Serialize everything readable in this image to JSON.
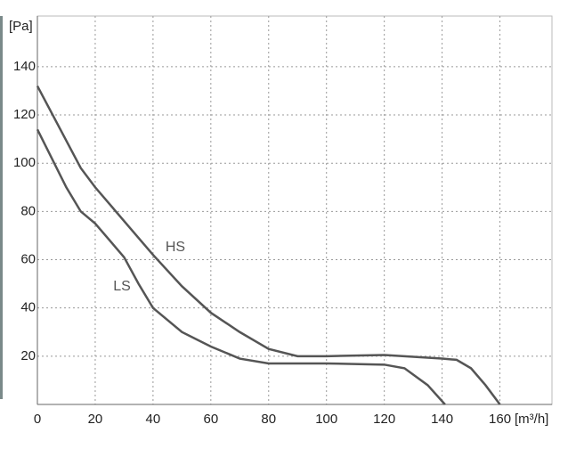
{
  "chart_data": {
    "type": "line",
    "x_label": "[m³/h]",
    "y_label": "[Pa]",
    "series": [
      {
        "name": "HS",
        "color": "#555555",
        "x": [
          0,
          15,
          20,
          40,
          50,
          60,
          70,
          80,
          90,
          100,
          120,
          140,
          145,
          150,
          155,
          160
        ],
        "values": [
          132,
          98,
          90,
          62,
          49,
          38,
          30,
          23,
          20,
          20,
          20.5,
          19,
          18.5,
          15,
          8,
          0
        ]
      },
      {
        "name": "LS",
        "color": "#555555",
        "x": [
          0,
          10,
          15,
          20,
          30,
          35,
          40,
          50,
          60,
          70,
          80,
          100,
          120,
          127,
          135,
          141
        ],
        "values": [
          114,
          90,
          80,
          75,
          61,
          50,
          40,
          30,
          24,
          19,
          17,
          17,
          16.5,
          15,
          8,
          0
        ]
      }
    ],
    "xlim": [
      0,
      178
    ],
    "xticks": [
      0,
      20,
      40,
      60,
      80,
      100,
      120,
      140,
      160
    ],
    "ylim": [
      0,
      161
    ],
    "yticks": [
      20,
      40,
      60,
      80,
      100,
      120,
      140
    ],
    "grid": true
  }
}
